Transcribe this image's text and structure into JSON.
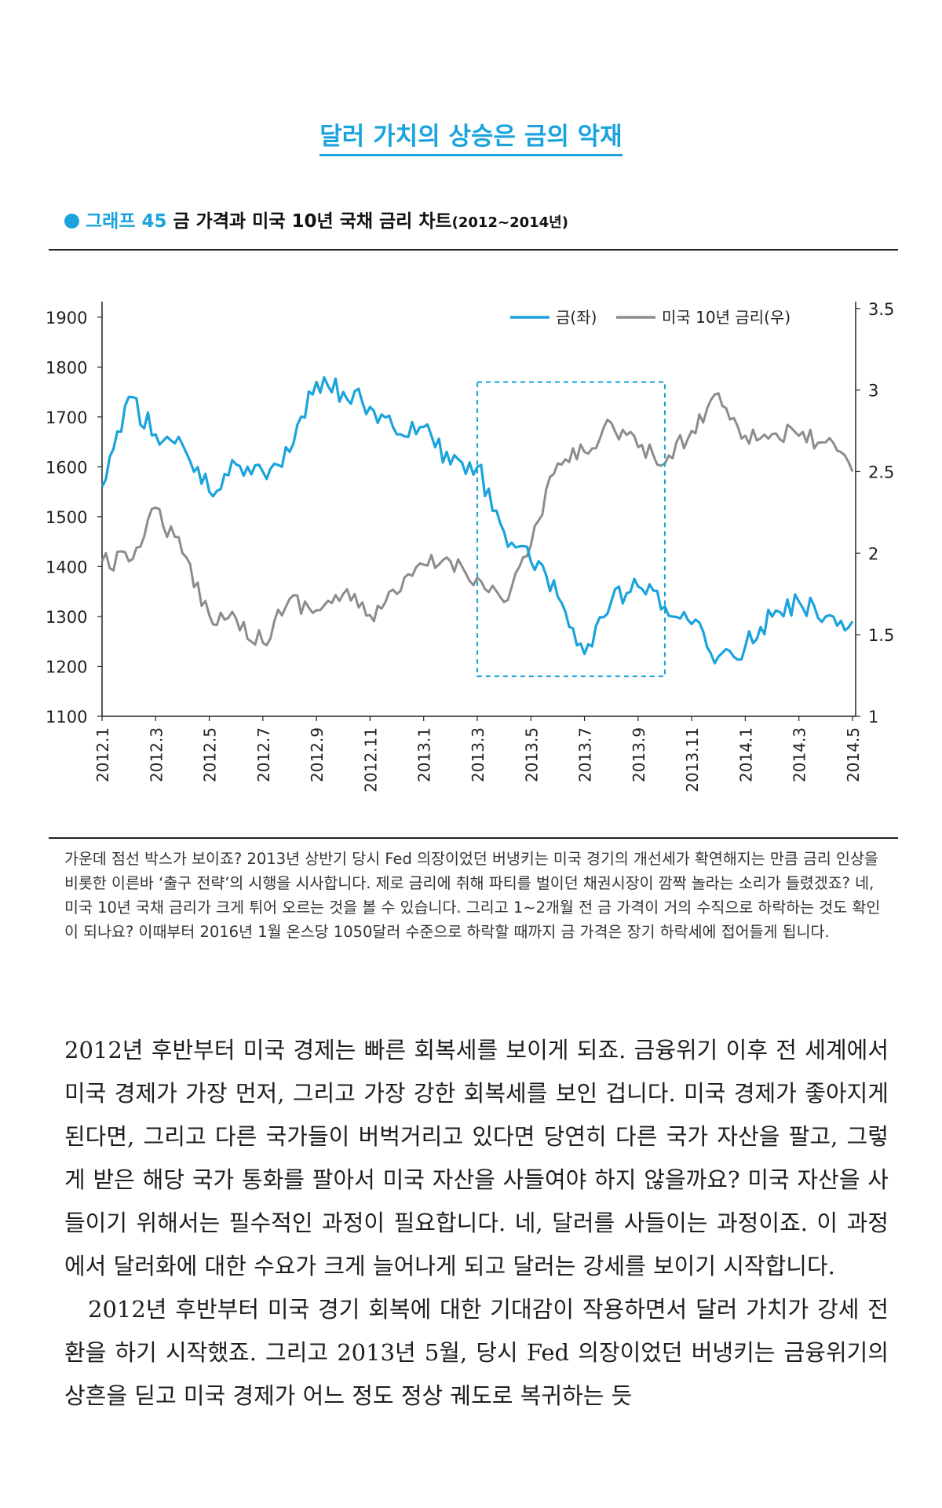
{
  "section_title": "달러 가치의 상승은 금의 악재",
  "graph_heading": {
    "label": "그래프 45",
    "title": "금 가격과 미국 10년 국채 금리 차트",
    "period": "(2012~2014년)"
  },
  "colors": {
    "gold": "#1aa3dd",
    "rate": "#8c8c8c",
    "accent": "#1aa3dd"
  },
  "chart_data": {
    "type": "line",
    "title": "금 가격과 미국 10년 국채 금리 차트",
    "x_tick_labels": [
      "2012.1",
      "2012.3",
      "2012.5",
      "2012.7",
      "2012.9",
      "2012.11",
      "2013.1",
      "2013.3",
      "2013.5",
      "2013.7",
      "2013.9",
      "2013.11",
      "2014.1",
      "2014.3",
      "2014.5"
    ],
    "xlim": [
      "2012.1",
      "2014.5"
    ],
    "left_axis": {
      "ylim": [
        1100,
        1950
      ],
      "ticks": [
        1100,
        1200,
        1300,
        1400,
        1500,
        1600,
        1700,
        1800,
        1900
      ]
    },
    "right_axis": {
      "ylim": [
        1,
        3.6
      ],
      "ticks": [
        1,
        1.5,
        2,
        2.5,
        3,
        3.5
      ]
    },
    "legend": {
      "position": "top-right"
    },
    "annotation": {
      "type": "dashed-box",
      "from": "2013.3",
      "to": "2013.10",
      "ymin": 1180,
      "ymax": 1770
    },
    "series": [
      {
        "name": "금(좌)",
        "axis": "left",
        "x": [
          "2012.1",
          "2012.2",
          "2012.3",
          "2012.4",
          "2012.5",
          "2012.6",
          "2012.7",
          "2012.8",
          "2012.9",
          "2012.10",
          "2012.11",
          "2012.12",
          "2013.1",
          "2013.2",
          "2013.3",
          "2013.4",
          "2013.5",
          "2013.6",
          "2013.7",
          "2013.8",
          "2013.9",
          "2013.10",
          "2013.11",
          "2013.12",
          "2014.1",
          "2014.2",
          "2014.3",
          "2014.4",
          "2014.5"
        ],
        "values": [
          1560,
          1740,
          1665,
          1645,
          1550,
          1605,
          1590,
          1630,
          1770,
          1750,
          1720,
          1665,
          1680,
          1605,
          1600,
          1470,
          1410,
          1340,
          1225,
          1330,
          1360,
          1320,
          1285,
          1220,
          1240,
          1300,
          1330,
          1300,
          1290
        ]
      },
      {
        "name": "미국 10년 금리(우)",
        "axis": "right",
        "x": [
          "2012.1",
          "2012.2",
          "2012.3",
          "2012.4",
          "2012.5",
          "2012.6",
          "2012.7",
          "2012.8",
          "2012.9",
          "2012.10",
          "2012.11",
          "2012.12",
          "2013.1",
          "2013.2",
          "2013.3",
          "2013.4",
          "2013.5",
          "2013.6",
          "2013.7",
          "2013.8",
          "2013.9",
          "2013.10",
          "2013.11",
          "2013.12",
          "2014.1",
          "2014.2",
          "2014.3",
          "2014.4",
          "2014.5"
        ],
        "values": [
          1.95,
          1.95,
          2.28,
          2.0,
          1.62,
          1.6,
          1.45,
          1.72,
          1.65,
          1.75,
          1.62,
          1.75,
          1.93,
          1.95,
          1.85,
          1.7,
          2.05,
          2.55,
          2.62,
          2.8,
          2.65,
          2.55,
          2.75,
          2.98,
          2.72,
          2.73,
          2.72,
          2.68,
          2.5
        ]
      }
    ]
  },
  "caption": "가운데 점선 박스가 보이죠? 2013년 상반기 당시 Fed 의장이었던 버냉키는 미국 경기의 개선세가 확연해지는 만큼 금리 인상을 비롯한 이른바 ‘출구 전략’의 시행을 시사합니다. 제로 금리에 취해 파티를 벌이던 채권시장이 깜짝 놀라는 소리가 들렸겠죠? 네, 미국 10년 국채 금리가 크게 튀어 오르는 것을 볼 수 있습니다. 그리고 1~2개월 전 금 가격이 거의 수직으로 하락하는 것도 확인이 되나요? 이때부터 2016년 1월 온스당 1050달러 수준으로 하락할 때까지 금 가격은 장기 하락세에 접어들게 됩니다.",
  "body_paragraphs": [
    "2012년 후반부터 미국 경제는 빠른 회복세를 보이게 되죠. 금융위기 이후 전 세계에서 미국 경제가 가장 먼저, 그리고 가장 강한 회복세를 보인 겁니다. 미국 경제가 좋아지게 된다면, 그리고 다른 국가들이 버벅거리고 있다면 당연히 다른 국가 자산을 팔고, 그렇게 받은 해당 국가 통화를 팔아서 미국 자산을 사들여야 하지 않을까요? 미국 자산을 사들이기 위해서는 필수적인 과정이 필요합니다. 네, 달러를 사들이는 과정이죠. 이 과정에서 달러화에 대한 수요가 크게 늘어나게 되고 달러는 강세를 보이기 시작합니다.",
    "2012년 후반부터 미국 경기 회복에 대한 기대감이 작용하면서 달러 가치가 강세 전환을 하기 시작했죠. 그리고 2013년 5월, 당시 Fed 의장이었던 버냉키는 금융위기의 상흔을 딛고 미국 경제가 어느 정도 정상 궤도로 복귀하는 듯"
  ]
}
